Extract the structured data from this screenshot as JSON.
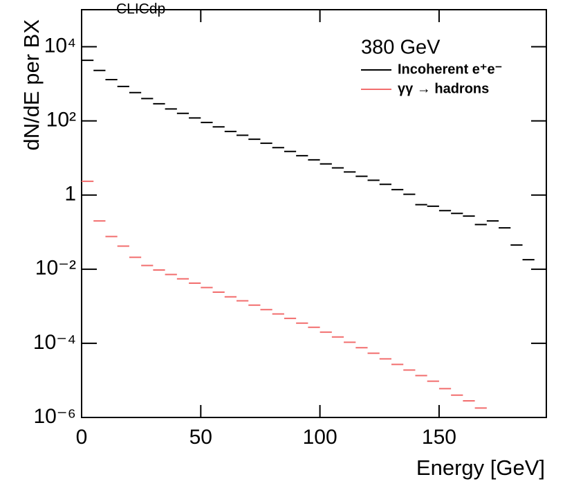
{
  "chart_data": {
    "type": "histogram",
    "title": "CLICdp",
    "annotation": "380 GeV",
    "x_label": "Energy [GeV]",
    "y_label": "dN/dE per BX",
    "log_y": true,
    "legend": "upper right",
    "bins": [
      0,
      5,
      10,
      15,
      20,
      25,
      30,
      35,
      40,
      45,
      50,
      55,
      60,
      65,
      70,
      75,
      80,
      85,
      90,
      95,
      100,
      105,
      110,
      115,
      120,
      125,
      130,
      135,
      140,
      145,
      150,
      155,
      160,
      165,
      170,
      175,
      180,
      185,
      190
    ],
    "xlim": [
      0,
      195
    ],
    "xticks": [
      0,
      50,
      100,
      150
    ],
    "ylim": [
      1e-06,
      100000
    ],
    "yticks": [
      {
        "value": 1e-06,
        "label": "10⁻⁶"
      },
      {
        "value": 0.0001,
        "label": "10⁻⁴"
      },
      {
        "value": 0.01,
        "label": "10⁻²"
      },
      1,
      {
        "value": 100,
        "label": "10²"
      },
      {
        "value": 10000,
        "label": "10⁴"
      }
    ],
    "series": [
      {
        "name": "Incoherent e⁺e⁻",
        "color": "#000000",
        "values": [
          4300,
          2300,
          1300,
          850,
          580,
          400,
          290,
          210,
          160,
          120,
          91,
          69,
          52,
          41,
          32,
          25,
          19,
          15,
          11.5,
          8.9,
          6.9,
          5.4,
          4.2,
          3.2,
          2.5,
          1.95,
          1.4,
          1.05,
          0.55,
          0.5,
          0.38,
          0.32,
          0.27,
          0.16,
          0.2,
          0.13,
          0.045,
          0.018
        ]
      },
      {
        "name": "γγ → hadrons",
        "color": "#f26d6d",
        "values": [
          2.35,
          0.2,
          0.076,
          0.042,
          0.021,
          0.0126,
          0.0095,
          0.0072,
          0.0055,
          0.0042,
          0.0032,
          0.0024,
          0.0018,
          0.0014,
          0.00107,
          0.00081,
          0.00062,
          0.00047,
          0.00035,
          0.00027,
          0.0002,
          0.000148,
          0.000107,
          7.6e-05,
          5.4e-05,
          3.8e-05,
          2.7e-05,
          1.9e-05,
          1.35e-05,
          9.5e-06,
          6e-06,
          4e-06,
          2.8e-06,
          1.8e-06,
          null,
          null,
          null,
          null
        ]
      }
    ]
  }
}
